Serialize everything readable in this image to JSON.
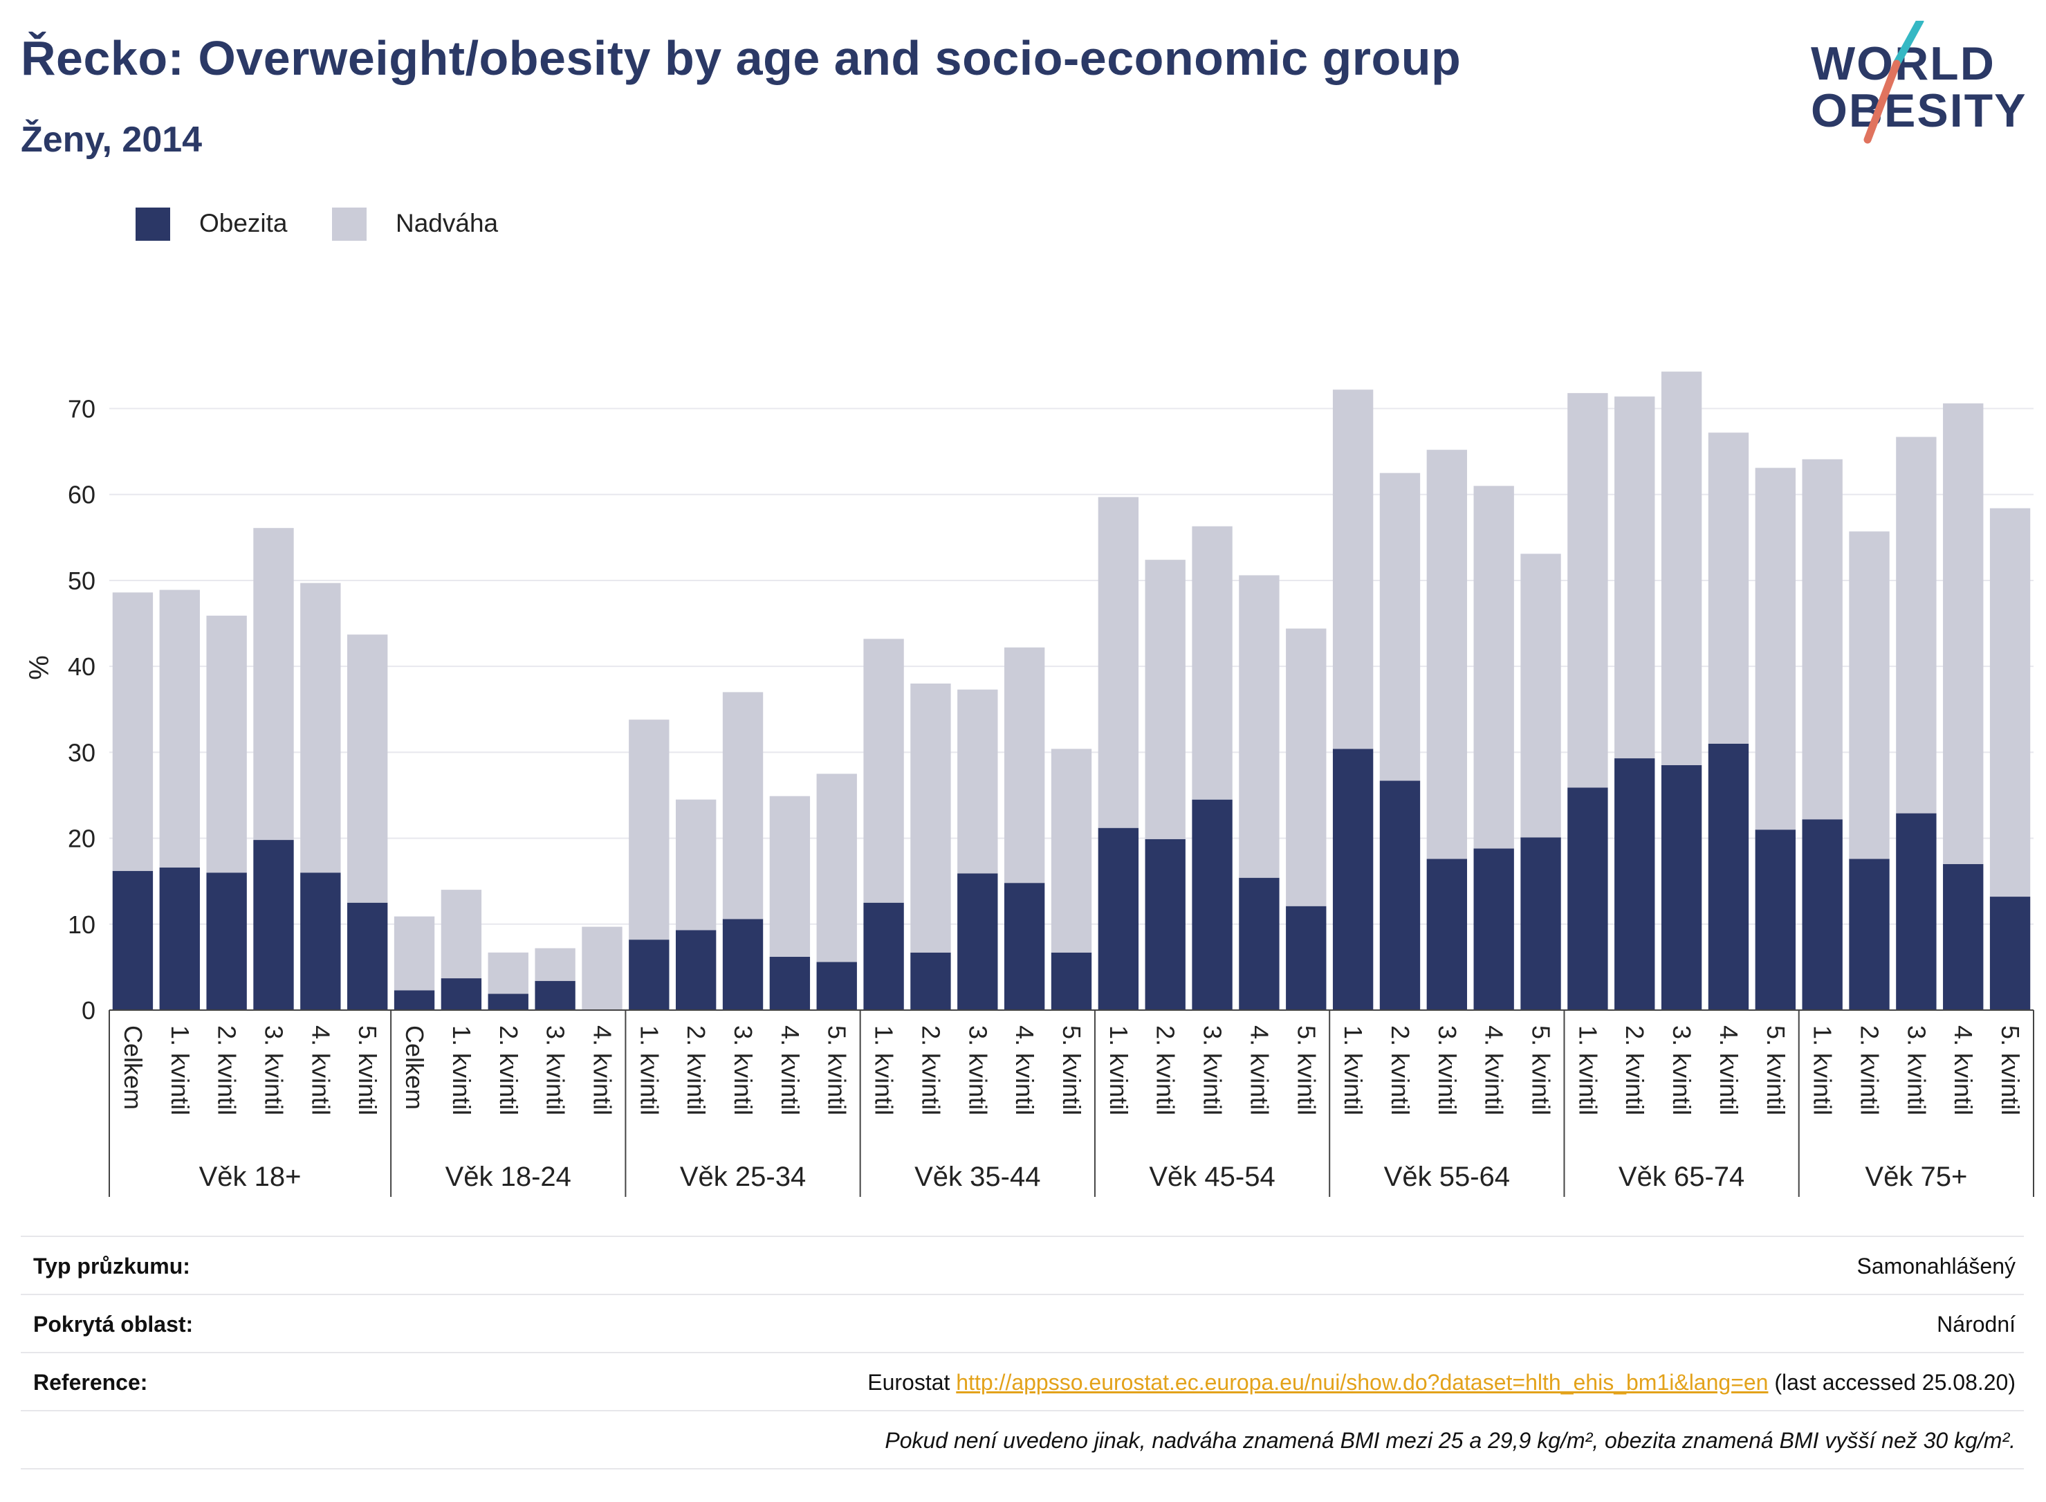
{
  "header": {
    "title": "Řecko: Overweight/obesity by age and socio-economic group",
    "subtitle": "Ženy, 2014"
  },
  "logo": {
    "line1": "WORLD",
    "line2": "OBESITY",
    "colors": {
      "text": "#2b3966",
      "slash_top": "#35b8c4",
      "slash_bottom": "#e0735e"
    }
  },
  "legend": [
    {
      "label": "Obezita",
      "color": "#2b3766"
    },
    {
      "label": "Nadváha",
      "color": "#cbccd8"
    }
  ],
  "chart_data": {
    "type": "bar",
    "stacked": true,
    "title": "Řecko: Overweight/obesity by age and socio-economic group",
    "subtitle": "Ženy, 2014",
    "ylabel": "%",
    "ylim": [
      0,
      76
    ],
    "yticks": [
      0,
      10,
      20,
      30,
      40,
      50,
      60,
      70
    ],
    "grid": true,
    "legend_position": "top-left",
    "groups": [
      {
        "label": "Věk 18+",
        "categories": [
          "Celkem",
          "1. kvintil",
          "2. kvintil",
          "3. kvintil",
          "4. kvintil",
          "5. kvintil"
        ]
      },
      {
        "label": "Věk 18-24",
        "categories": [
          "Celkem",
          "1. kvintil",
          "2. kvintil",
          "3. kvintil",
          "4. kvintil"
        ]
      },
      {
        "label": "Věk 25-34",
        "categories": [
          "1. kvintil",
          "2. kvintil",
          "3. kvintil",
          "4. kvintil",
          "5. kvintil"
        ]
      },
      {
        "label": "Věk 35-44",
        "categories": [
          "1. kvintil",
          "2. kvintil",
          "3. kvintil",
          "4. kvintil",
          "5. kvintil"
        ]
      },
      {
        "label": "Věk 45-54",
        "categories": [
          "1. kvintil",
          "2. kvintil",
          "3. kvintil",
          "4. kvintil",
          "5. kvintil"
        ]
      },
      {
        "label": "Věk 55-64",
        "categories": [
          "1. kvintil",
          "2. kvintil",
          "3. kvintil",
          "4. kvintil",
          "5. kvintil"
        ]
      },
      {
        "label": "Věk 65-74",
        "categories": [
          "1. kvintil",
          "2. kvintil",
          "3. kvintil",
          "4. kvintil",
          "5. kvintil"
        ]
      },
      {
        "label": "Věk 75+",
        "categories": [
          "1. kvintil",
          "2. kvintil",
          "3. kvintil",
          "4. kvintil",
          "5. kvintil"
        ]
      }
    ],
    "series": [
      {
        "name": "Obezita",
        "color": "#2b3766",
        "values": [
          16.2,
          16.6,
          16.0,
          19.8,
          16.0,
          12.5,
          2.3,
          3.7,
          1.9,
          3.4,
          0.0,
          8.2,
          9.3,
          10.6,
          6.2,
          5.6,
          12.5,
          6.7,
          15.9,
          14.8,
          6.7,
          21.2,
          19.9,
          24.5,
          15.4,
          12.1,
          30.4,
          26.7,
          17.6,
          18.8,
          20.1,
          25.9,
          29.3,
          28.5,
          31.0,
          21.0,
          22.2,
          17.6,
          22.9,
          17.0,
          13.2
        ]
      },
      {
        "name": "Nadváha",
        "color": "#cbccd8",
        "values": [
          32.4,
          32.3,
          29.9,
          36.3,
          33.7,
          31.2,
          8.6,
          10.3,
          4.8,
          3.8,
          9.7,
          25.6,
          15.2,
          26.4,
          18.7,
          21.9,
          30.7,
          31.3,
          21.4,
          27.4,
          23.7,
          38.5,
          32.5,
          31.8,
          35.2,
          32.3,
          41.8,
          35.8,
          47.6,
          42.2,
          33.0,
          45.9,
          42.1,
          45.8,
          36.2,
          42.1,
          41.9,
          38.1,
          43.8,
          53.6,
          45.2
        ]
      }
    ]
  },
  "info": {
    "survey_type": {
      "label": "Typ průzkumu:",
      "value": "Samonahlášený"
    },
    "coverage": {
      "label": "Pokrytá oblast:",
      "value": "Národní"
    },
    "reference": {
      "label": "Reference:",
      "prefix": "Eurostat",
      "link": "http://appsso.eurostat.ec.europa.eu/nui/show.do?dataset=hlth_ehis_bm1i&lang=en",
      "suffix": "(last accessed 25.08.20)"
    },
    "note": "Pokud není uvedeno jinak, nadváha znamená BMI mezi 25 a 29,9 kg/m², obezita znamená BMI vyšší než 30 kg/m²."
  }
}
